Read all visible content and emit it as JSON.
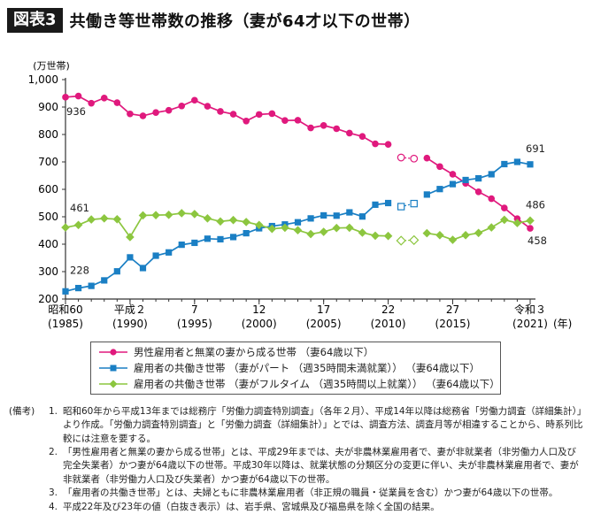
{
  "figure": {
    "tag": "図表3",
    "title": "共働き等世帯数の推移（妻が64才以下の世帯）"
  },
  "chart_data": {
    "type": "line",
    "y_unit_label": "(万世帯)",
    "ylim": [
      200,
      1000
    ],
    "y_ticks": [
      "200",
      "300",
      "400",
      "500",
      "600",
      "700",
      "800",
      "900",
      "1,000"
    ],
    "x_unit_label": "(年)",
    "x": [
      1985,
      1986,
      1987,
      1988,
      1989,
      1990,
      1991,
      1992,
      1993,
      1994,
      1995,
      1996,
      1997,
      1998,
      1999,
      2000,
      2001,
      2002,
      2003,
      2004,
      2005,
      2006,
      2007,
      2008,
      2009,
      2010,
      2011,
      2012,
      2013,
      2014,
      2015,
      2016,
      2017,
      2018,
      2019,
      2020,
      2021
    ],
    "x_ticks": [
      {
        "year": 1985,
        "top": "昭和60",
        "bottom": "(1985)"
      },
      {
        "year": 1990,
        "top": "平成２",
        "bottom": "(1990)"
      },
      {
        "year": 1995,
        "top": "7",
        "bottom": "(1995)"
      },
      {
        "year": 2000,
        "top": "12",
        "bottom": "(2000)"
      },
      {
        "year": 2005,
        "top": "17",
        "bottom": "(2005)"
      },
      {
        "year": 2010,
        "top": "22",
        "bottom": "(2010)"
      },
      {
        "year": 2015,
        "top": "27",
        "bottom": "(2015)"
      },
      {
        "year": 2021,
        "top": "令和３",
        "bottom": "(2021)"
      }
    ],
    "series": [
      {
        "name": "男性雇用者と無業の妻から成る世帯 （妻64歳以下）",
        "color": "#e0197d",
        "marker": "circle",
        "values": [
          936,
          940,
          914,
          933,
          916,
          875,
          868,
          880,
          888,
          904,
          925,
          903,
          884,
          874,
          849,
          873,
          876,
          851,
          852,
          824,
          833,
          821,
          805,
          793,
          766,
          764,
          null,
          null,
          714,
          683,
          655,
          622,
          591,
          566,
          532,
          493,
          458
        ],
        "hollow": [
          {
            "year": 2011,
            "value": 716
          },
          {
            "year": 2012,
            "value": 712
          }
        ],
        "labels": [
          {
            "year": 1985,
            "text": "936"
          },
          {
            "year": 2021,
            "text": "458"
          }
        ]
      },
      {
        "name": "雇用者の共働き世帯 （妻がパート （週35時間未満就業）） （妻64歳以下）",
        "color": "#1a7fc4",
        "marker": "square",
        "values": [
          228,
          240,
          248,
          268,
          301,
          352,
          313,
          358,
          370,
          398,
          405,
          420,
          418,
          426,
          440,
          458,
          466,
          472,
          480,
          494,
          505,
          504,
          516,
          501,
          544,
          550,
          null,
          null,
          581,
          601,
          619,
          634,
          640,
          655,
          692,
          700,
          691
        ],
        "hollow": [
          {
            "year": 2011,
            "value": 537
          },
          {
            "year": 2012,
            "value": 548
          }
        ],
        "labels": [
          {
            "year": 1985,
            "text": "228"
          },
          {
            "year": 2021,
            "text": "691"
          }
        ]
      },
      {
        "name": "雇用者の共働き世帯 （妻がフルタイム （週35時間以上就業）） （妻64歳以下）",
        "color": "#8cc63f",
        "marker": "diamond",
        "values": [
          461,
          470,
          490,
          494,
          491,
          426,
          505,
          506,
          507,
          513,
          510,
          494,
          483,
          488,
          481,
          470,
          456,
          460,
          451,
          437,
          445,
          459,
          460,
          442,
          431,
          430,
          null,
          null,
          440,
          433,
          416,
          433,
          441,
          461,
          489,
          477,
          486
        ],
        "hollow": [
          {
            "year": 2011,
            "value": 413
          },
          {
            "year": 2012,
            "value": 415
          }
        ],
        "labels": [
          {
            "year": 1985,
            "text": "461"
          },
          {
            "year": 2021,
            "text": "486"
          }
        ]
      }
    ]
  },
  "notes": {
    "head": "(備考)",
    "items": [
      {
        "num": "1.",
        "text": "昭和60年から平成13年までは総務庁「労働力調査特別調査」（各年２月）、平成14年以降は総務省「労働力調査（詳細集計）」より作成。「労働力調査特別調査」と「労働力調査（詳細集計）」とでは、調査方法、調査月等が相違することから、時系列比較には注意を要する。"
      },
      {
        "num": "2.",
        "text": "「男性雇用者と無業の妻から成る世帯」とは、平成29年までは、夫が非農林業雇用者で、妻が非就業者（非労働力人口及び完全失業者）かつ妻が64歳以下の世帯。平成30年以降は、就業状態の分類区分の変更に伴い、夫が非農林業雇用者で、妻が非就業者（非労働力人口及び失業者）かつ妻が64歳以下の世帯。"
      },
      {
        "num": "3.",
        "text": "「雇用者の共働き世帯」とは、夫婦ともに非農林業雇用者（非正規の職員・従業員を含む）かつ妻が64歳以下の世帯。"
      },
      {
        "num": "4.",
        "text": "平成22年及び23年の値（白抜き表示）は、岩手県、宮城県及び福島県を除く全国の結果。"
      }
    ]
  }
}
